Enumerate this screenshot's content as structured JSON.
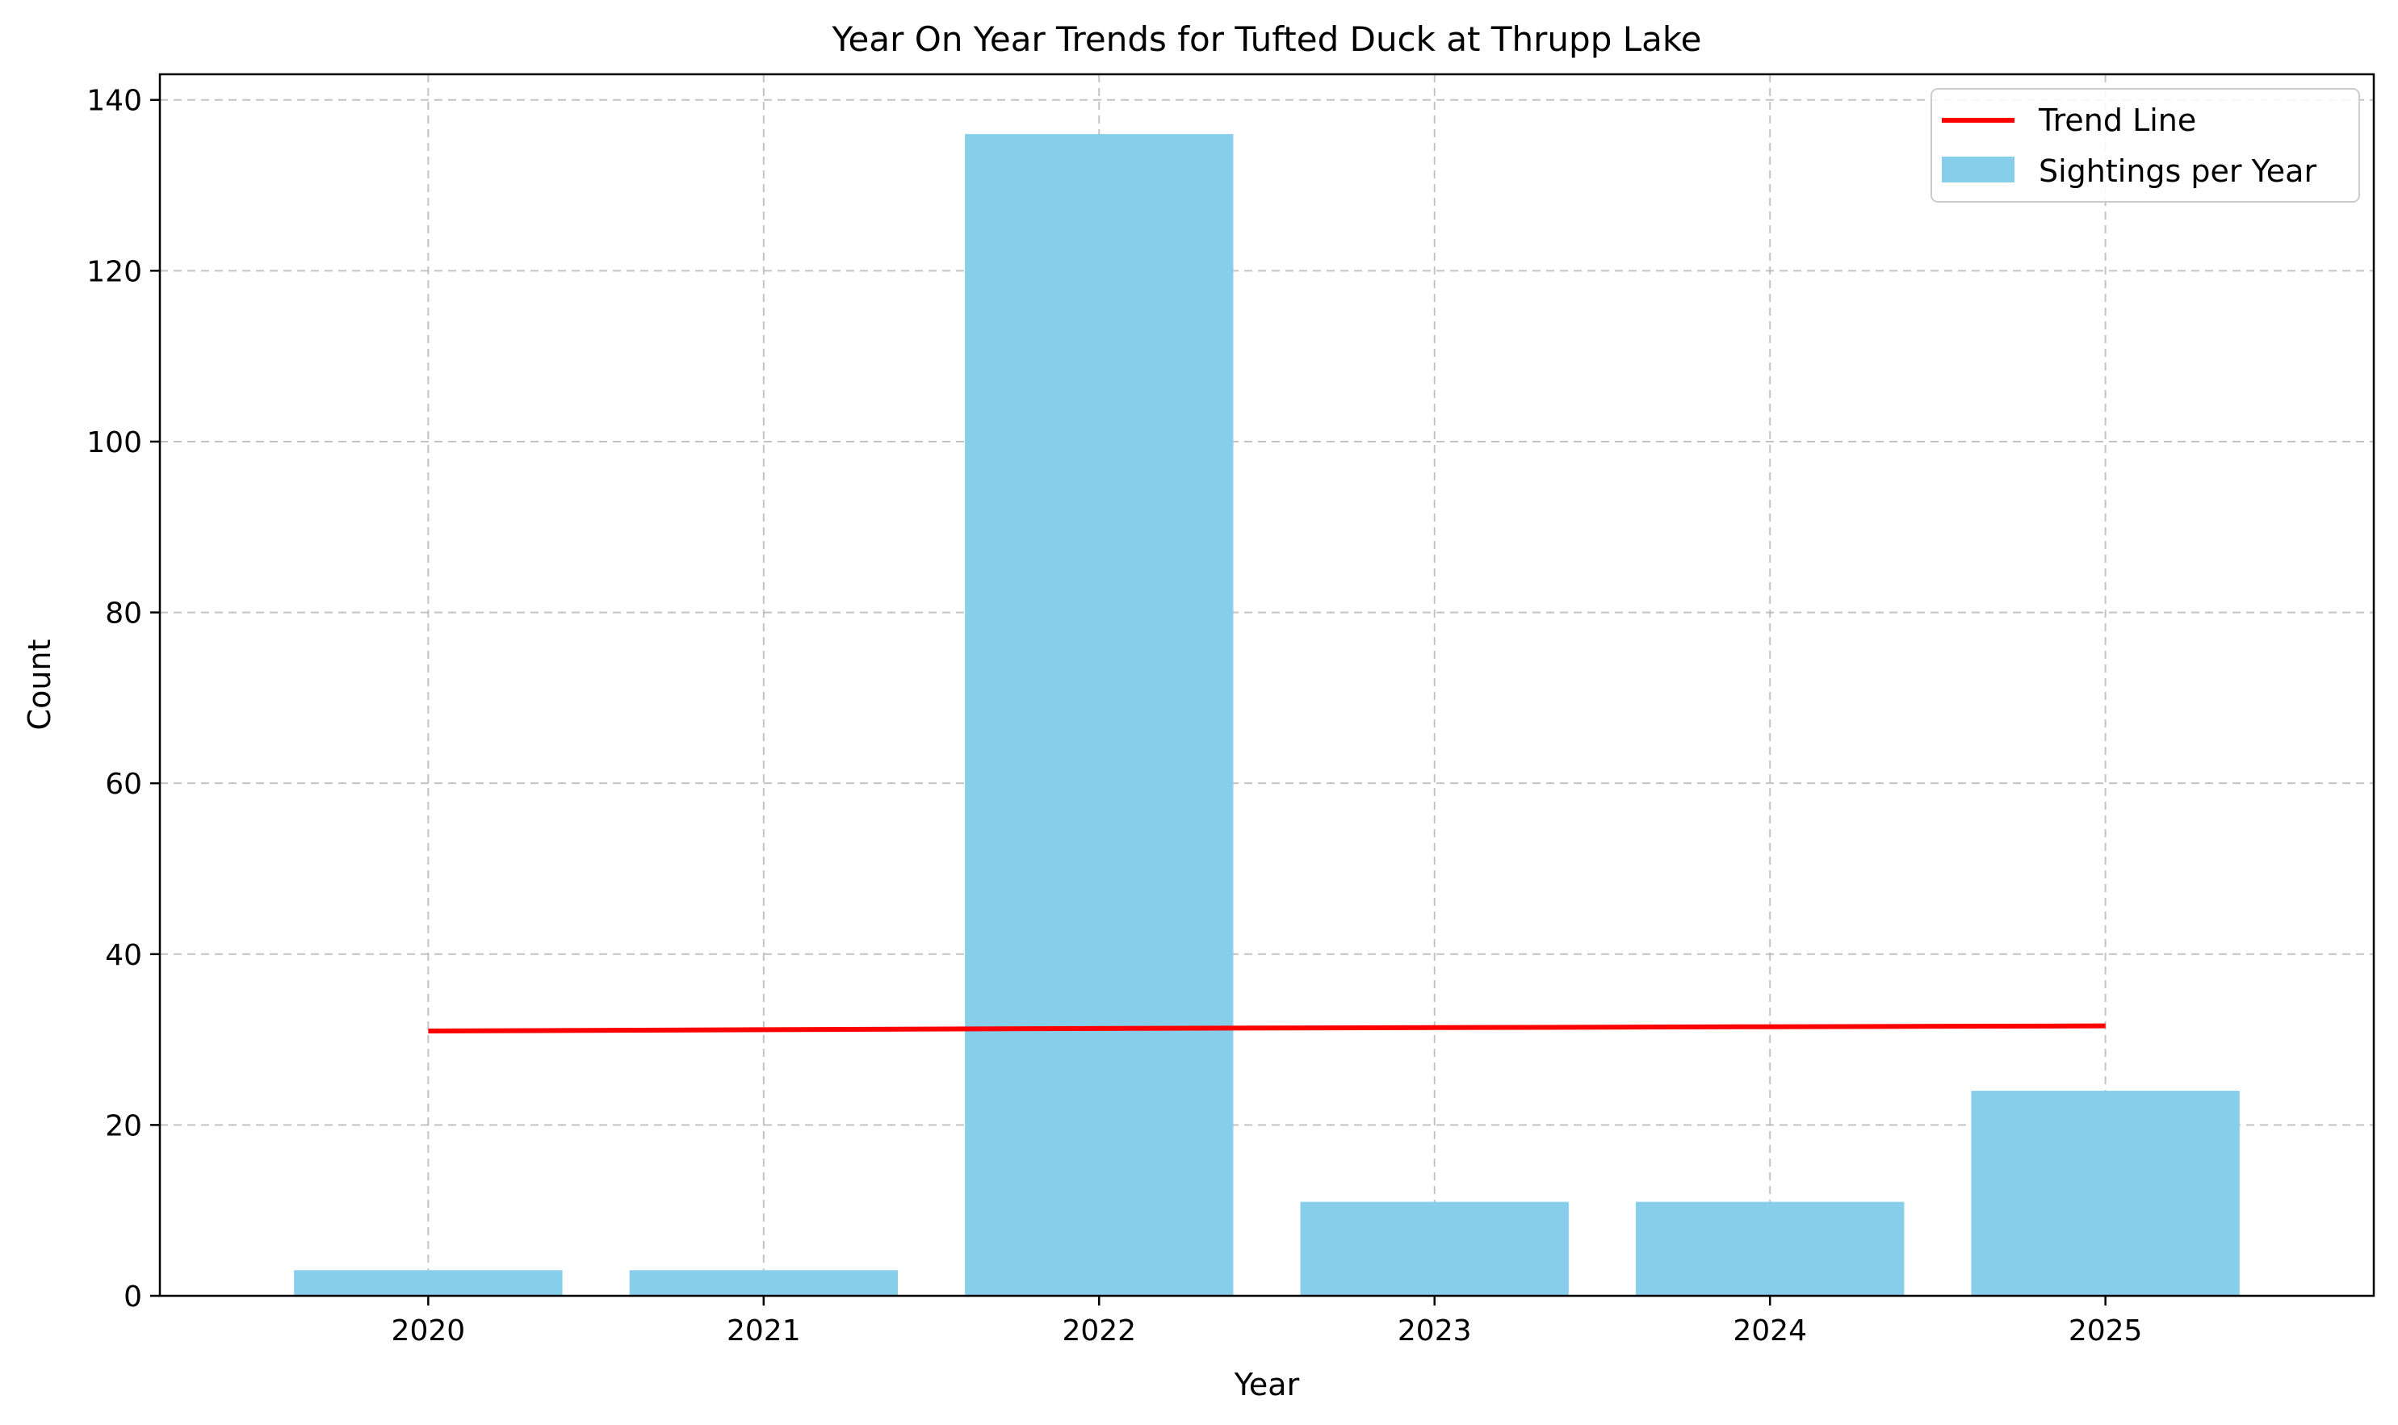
{
  "chart_data": {
    "type": "bar",
    "title": "Year On Year Trends for Tufted Duck at Thrupp Lake",
    "xlabel": "Year",
    "ylabel": "Count",
    "categories": [
      "2020",
      "2021",
      "2022",
      "2023",
      "2024",
      "2025"
    ],
    "series": [
      {
        "name": "Sightings per Year",
        "type": "bar",
        "color": "#87ceeb",
        "values": [
          3,
          3,
          136,
          11,
          11,
          24
        ]
      },
      {
        "name": "Trend Line",
        "type": "line",
        "color": "#ff0000",
        "values": [
          31.0,
          31.15,
          31.3,
          31.4,
          31.5,
          31.6
        ]
      }
    ],
    "ylim": [
      0,
      143
    ],
    "yticks": [
      0,
      20,
      40,
      60,
      80,
      100,
      120,
      140
    ],
    "grid": true,
    "legend": {
      "placement": "top-right",
      "entries": [
        "Trend Line",
        "Sightings per Year"
      ]
    }
  }
}
